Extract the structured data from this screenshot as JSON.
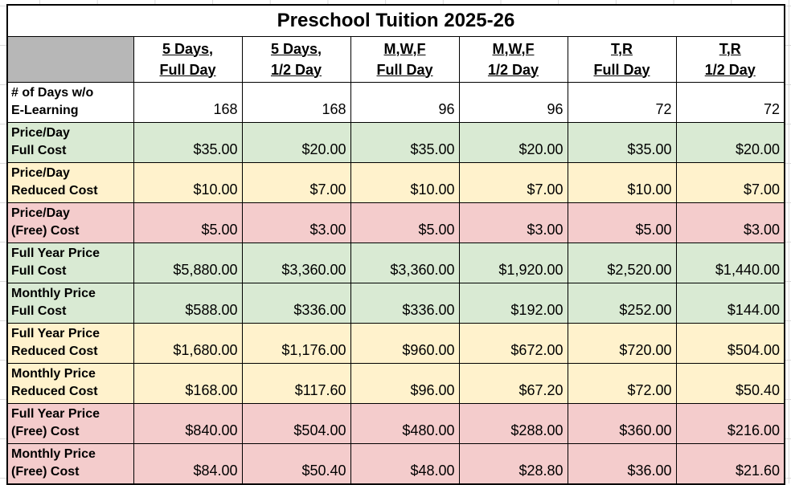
{
  "colors": {
    "green": "#d9ead3",
    "yellow": "#fff2cc",
    "red": "#f4cccc",
    "gray": "#b7b7b7",
    "border": "#000000",
    "gridline": "#dadada"
  },
  "table": {
    "title": "Preschool Tuition 2025-26",
    "corner": "",
    "columns": [
      "5 Days,\nFull Day",
      "5 Days,\n1/2 Day",
      "M,W,F\nFull Day",
      "M,W,F\n1/2 Day",
      "T,R\nFull Day",
      "T,R\n1/2 Day"
    ],
    "rows": [
      {
        "label": "# of Days w/o\nE-Learning",
        "tint": "white",
        "values": [
          "168",
          "168",
          "96",
          "96",
          "72",
          "72"
        ]
      },
      {
        "label": "Price/Day\nFull Cost",
        "tint": "green",
        "values": [
          "$35.00",
          "$20.00",
          "$35.00",
          "$20.00",
          "$35.00",
          "$20.00"
        ]
      },
      {
        "label": "Price/Day\nReduced Cost",
        "tint": "yellow",
        "values": [
          "$10.00",
          "$7.00",
          "$10.00",
          "$7.00",
          "$10.00",
          "$7.00"
        ]
      },
      {
        "label": "Price/Day\n(Free) Cost",
        "tint": "red",
        "values": [
          "$5.00",
          "$3.00",
          "$5.00",
          "$3.00",
          "$5.00",
          "$3.00"
        ]
      },
      {
        "label": "Full Year Price\nFull Cost",
        "tint": "green",
        "values": [
          "$5,880.00",
          "$3,360.00",
          "$3,360.00",
          "$1,920.00",
          "$2,520.00",
          "$1,440.00"
        ]
      },
      {
        "label": "Monthly Price\nFull Cost",
        "tint": "green",
        "values": [
          "$588.00",
          "$336.00",
          "$336.00",
          "$192.00",
          "$252.00",
          "$144.00"
        ]
      },
      {
        "label": "Full Year Price\nReduced Cost",
        "tint": "yellow",
        "values": [
          "$1,680.00",
          "$1,176.00",
          "$960.00",
          "$672.00",
          "$720.00",
          "$504.00"
        ]
      },
      {
        "label": "Monthly Price\nReduced Cost",
        "tint": "yellow",
        "values": [
          "$168.00",
          "$117.60",
          "$96.00",
          "$67.20",
          "$72.00",
          "$50.40"
        ]
      },
      {
        "label": "Full Year Price\n(Free) Cost",
        "tint": "red",
        "values": [
          "$840.00",
          "$504.00",
          "$480.00",
          "$288.00",
          "$360.00",
          "$216.00"
        ]
      },
      {
        "label": "Monthly Price\n(Free) Cost",
        "tint": "red",
        "values": [
          "$84.00",
          "$50.40",
          "$48.00",
          "$28.80",
          "$36.00",
          "$21.60"
        ]
      }
    ]
  }
}
